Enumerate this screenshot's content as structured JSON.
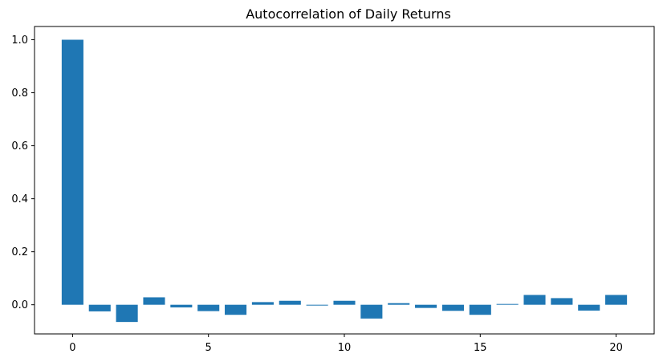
{
  "chart_data": {
    "type": "bar",
    "title": "Autocorrelation of Daily Returns",
    "xlabel": "",
    "ylabel": "",
    "x": [
      0,
      1,
      2,
      3,
      4,
      5,
      6,
      7,
      8,
      9,
      10,
      11,
      12,
      13,
      14,
      15,
      16,
      17,
      18,
      19,
      20
    ],
    "values": [
      1.0,
      -0.025,
      -0.065,
      0.028,
      -0.01,
      -0.024,
      -0.038,
      0.01,
      0.015,
      -0.003,
      0.015,
      -0.052,
      0.006,
      -0.012,
      -0.023,
      -0.038,
      0.003,
      0.037,
      0.025,
      -0.022,
      0.037
    ],
    "xlim": [
      -1.4,
      21.4
    ],
    "ylim": [
      -0.11,
      1.05
    ],
    "xticks": [
      0,
      5,
      10,
      15,
      20
    ],
    "xtick_labels": [
      "0",
      "5",
      "10",
      "15",
      "20"
    ],
    "yticks": [
      0.0,
      0.2,
      0.4,
      0.6,
      0.8,
      1.0
    ],
    "ytick_labels": [
      "0.0",
      "0.2",
      "0.4",
      "0.6",
      "0.8",
      "1.0"
    ],
    "bar_color": "#1f77b4",
    "grid": false,
    "legend": "none"
  }
}
